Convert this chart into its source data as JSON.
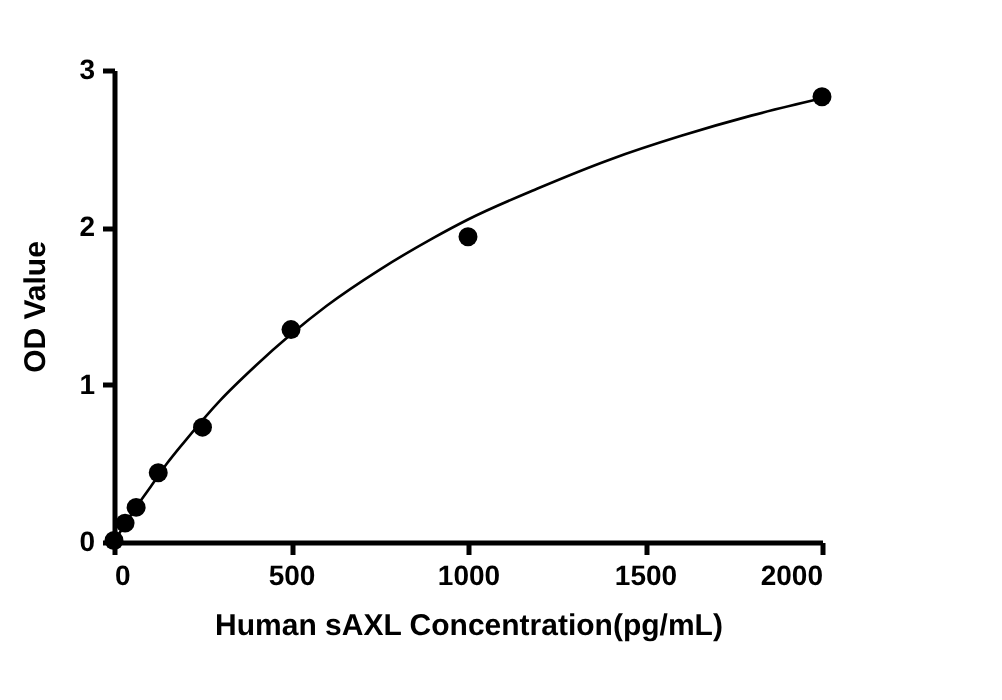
{
  "chart_data": {
    "type": "scatter",
    "xlabel": "Human sAXL Concentration(pg/mL)",
    "ylabel": "OD Value",
    "xlim": [
      0,
      2000
    ],
    "xticks": [
      0,
      500,
      1000,
      1500,
      2000
    ],
    "ylim": [
      0,
      3
    ],
    "yticks": [
      0,
      1,
      2,
      3
    ],
    "series": [
      {
        "color": "#000000",
        "marker": "circle",
        "x": [
          0,
          31.25,
          62.5,
          125,
          250,
          500,
          1000,
          2000
        ],
        "values": [
          0.01,
          0.12,
          0.22,
          0.44,
          0.73,
          1.35,
          1.94,
          2.83
        ]
      },
      {
        "type": "line",
        "color": "#000000",
        "line_style": "solid",
        "marker": "none",
        "x": [
          0,
          50,
          100,
          150,
          200,
          300,
          400,
          500,
          600,
          750,
          900,
          1000,
          1200,
          1400,
          1600,
          1800,
          2000
        ],
        "values": [
          0,
          0.18,
          0.34,
          0.5,
          0.64,
          0.9,
          1.12,
          1.32,
          1.5,
          1.73,
          1.93,
          2.05,
          2.25,
          2.43,
          2.58,
          2.71,
          2.82
        ]
      }
    ]
  }
}
